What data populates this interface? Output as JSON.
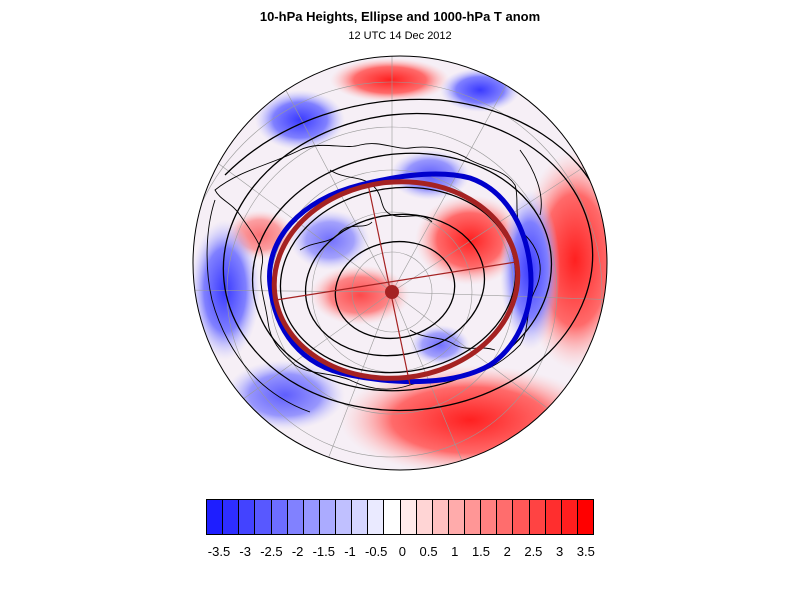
{
  "title": "10-hPa Heights, Ellipse and 1000-hPa T anom",
  "subtitle": "12 UTC 14 Dec 2012",
  "colorbar": {
    "colors": [
      "#1e1eff",
      "#2e2eff",
      "#4343ff",
      "#5858ff",
      "#6d6dff",
      "#8181ff",
      "#9696ff",
      "#ababff",
      "#c0c0ff",
      "#d5d5ff",
      "#eaeaff",
      "#ffffff",
      "#ffeaea",
      "#ffd5d5",
      "#ffc0c0",
      "#ffabab",
      "#ff9696",
      "#ff8181",
      "#ff6d6d",
      "#ff5858",
      "#ff4343",
      "#ff2e2e",
      "#ff1e1e",
      "#ff0000"
    ],
    "ticks": [
      "-3.5",
      "-3",
      "-2.5",
      "-2",
      "-1.5",
      "-1",
      "-0.5",
      "0",
      "0.5",
      "1",
      "1.5",
      "2",
      "2.5",
      "3",
      "3.5"
    ]
  },
  "map_colors": {
    "background": "#f4eef4",
    "warm": "#f24a4a",
    "cold": "#4a55f0",
    "ellipse": "#a52222",
    "blue_contour": "#0000cc"
  }
}
